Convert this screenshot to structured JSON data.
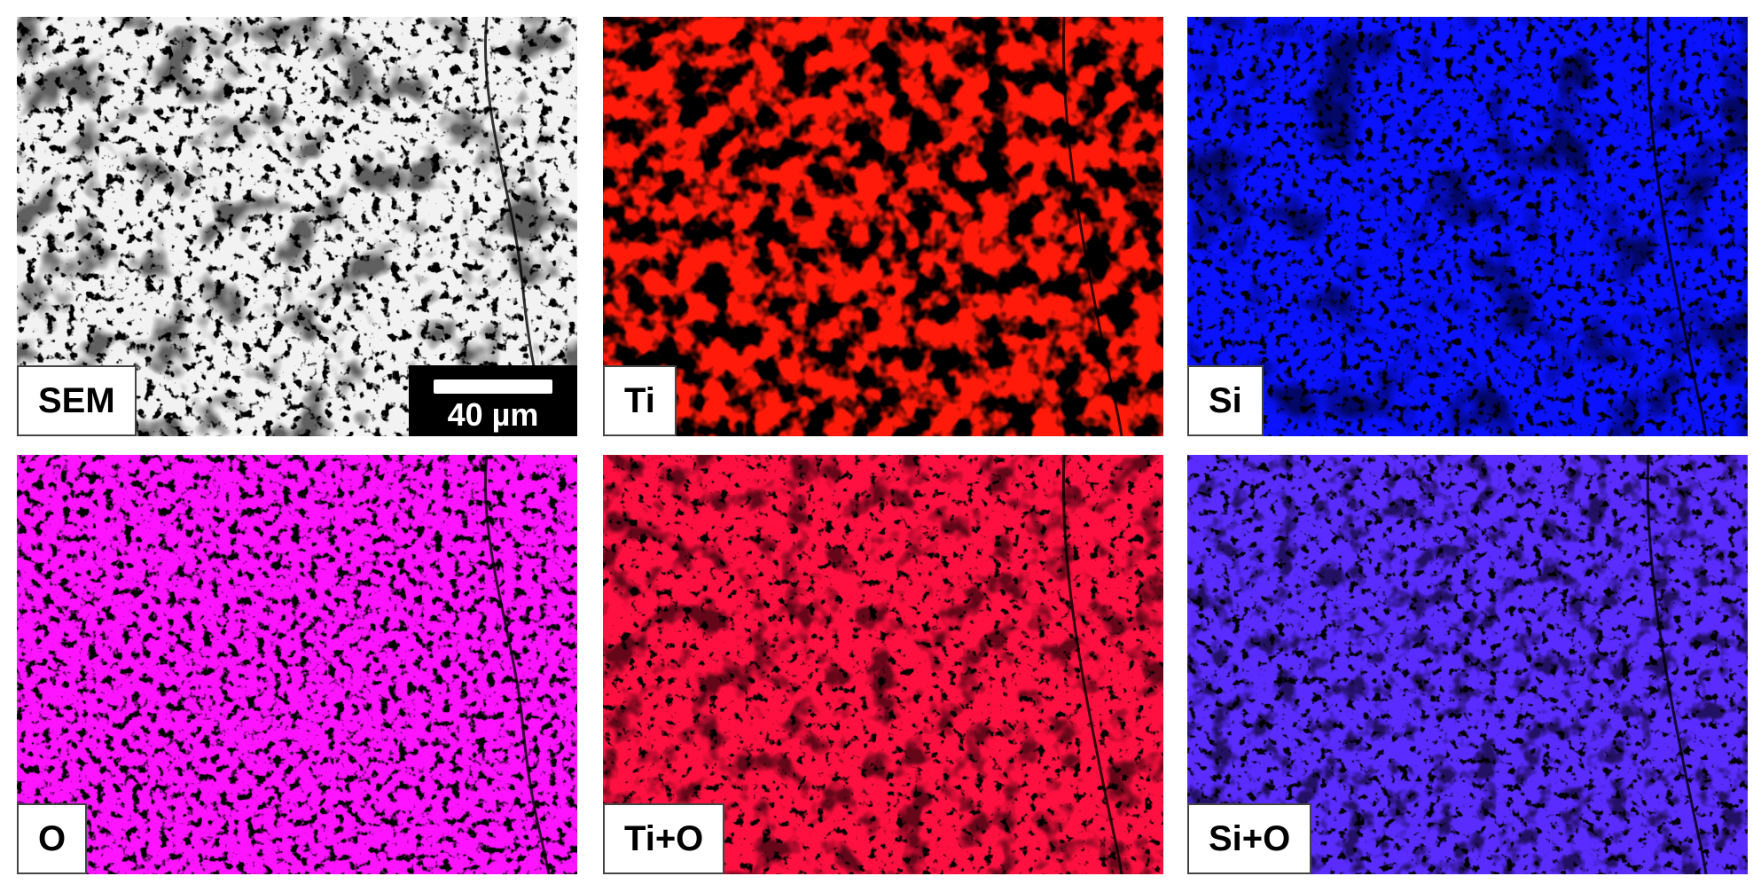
{
  "panels": [
    {
      "label": "SEM"
    },
    {
      "label": "Ti"
    },
    {
      "label": "Si"
    },
    {
      "label": "O"
    },
    {
      "label": "Ti+O"
    },
    {
      "label": "Si+O"
    }
  ],
  "scale_bar": {
    "label": "40 µm"
  }
}
